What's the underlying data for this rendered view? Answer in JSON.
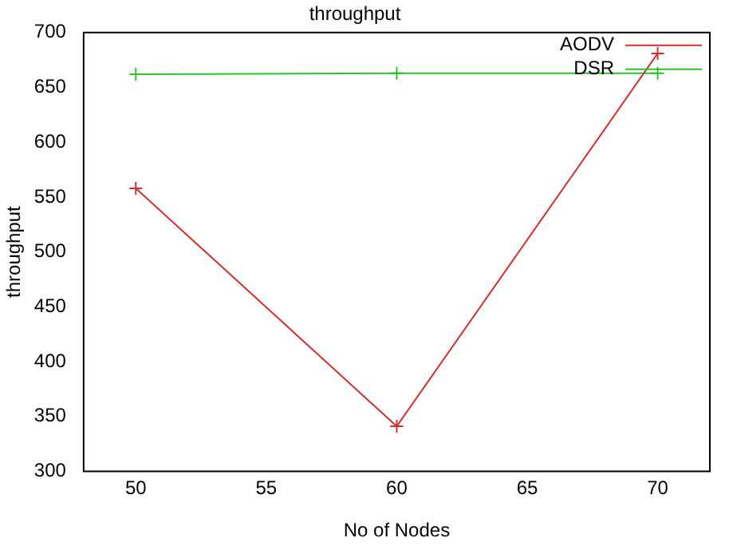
{
  "chart_data": {
    "type": "line",
    "title": "throughput",
    "xlabel": "No of Nodes",
    "ylabel": "throughput",
    "x": [
      50,
      60,
      70
    ],
    "series": [
      {
        "name": "AODV",
        "color": "#d03030",
        "values": [
          558,
          341,
          681
        ]
      },
      {
        "name": "DSR",
        "color": "#30c030",
        "values": [
          662,
          663,
          663
        ]
      }
    ],
    "xlim": [
      48,
      72
    ],
    "xticks": [
      50,
      55,
      60,
      65,
      70
    ],
    "ylim": [
      300,
      700
    ],
    "yticks": [
      300,
      350,
      400,
      450,
      500,
      550,
      600,
      650,
      700
    ],
    "grid": false,
    "legend": "top right",
    "marker": "cross",
    "line_style": "solid"
  }
}
